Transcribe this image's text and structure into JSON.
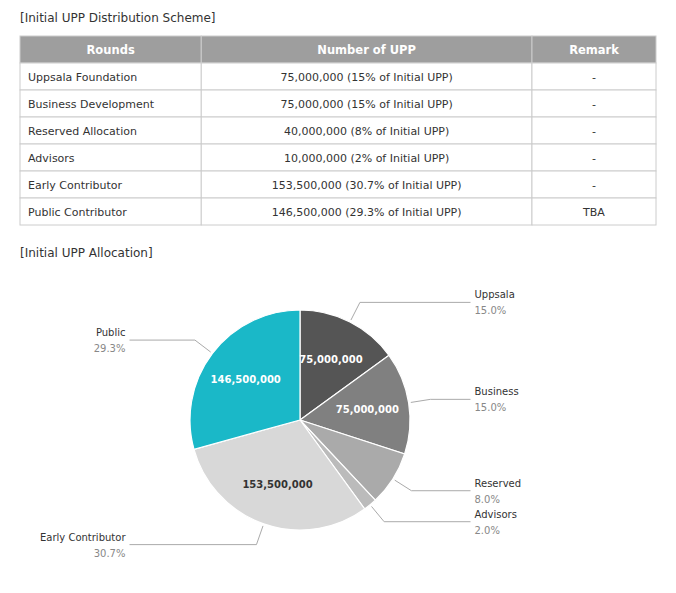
{
  "chart_data": [
    {
      "type": "table",
      "title": "[Initial UPP Distribution Scheme]",
      "columns": [
        "Rounds",
        "Number of UPP",
        "Remark"
      ],
      "rows": [
        [
          "Uppsala Foundation",
          "75,000,000 (15% of Initial UPP)",
          "-"
        ],
        [
          "Business Development",
          "75,000,000 (15% of Initial UPP)",
          "-"
        ],
        [
          "Reserved Allocation",
          "40,000,000 (8% of Initial UPP)",
          "-"
        ],
        [
          "Advisors",
          "10,000,000 (2% of Initial UPP)",
          "-"
        ],
        [
          "Early Contributor",
          "153,500,000 (30.7% of Initial UPP)",
          "-"
        ],
        [
          "Public Contributor",
          "146,500,000 (29.3% of Initial UPP)",
          "TBA"
        ]
      ]
    },
    {
      "type": "pie",
      "title": "[Initial UPP Allocation]",
      "categories": [
        "Uppsala",
        "Business",
        "Reserved",
        "Advisors",
        "Early Contributor",
        "Public"
      ],
      "values": [
        15.0,
        15.0,
        8.0,
        2.0,
        30.7,
        29.3
      ],
      "value_labels": [
        "15.0%",
        "15.0%",
        "8.0%",
        "2.0%",
        "30.7%",
        "29.3%"
      ],
      "counts": [
        75000000,
        75000000,
        40000000,
        10000000,
        153500000,
        146500000
      ],
      "count_labels": [
        "75,000,000",
        "75,000,000",
        null,
        null,
        "153,500,000",
        "146,500,000"
      ],
      "colors": [
        "#555555",
        "#808080",
        "#aaaaaa",
        "#bbbbbb",
        "#d8d8d8",
        "#1ab8c8"
      ]
    }
  ]
}
